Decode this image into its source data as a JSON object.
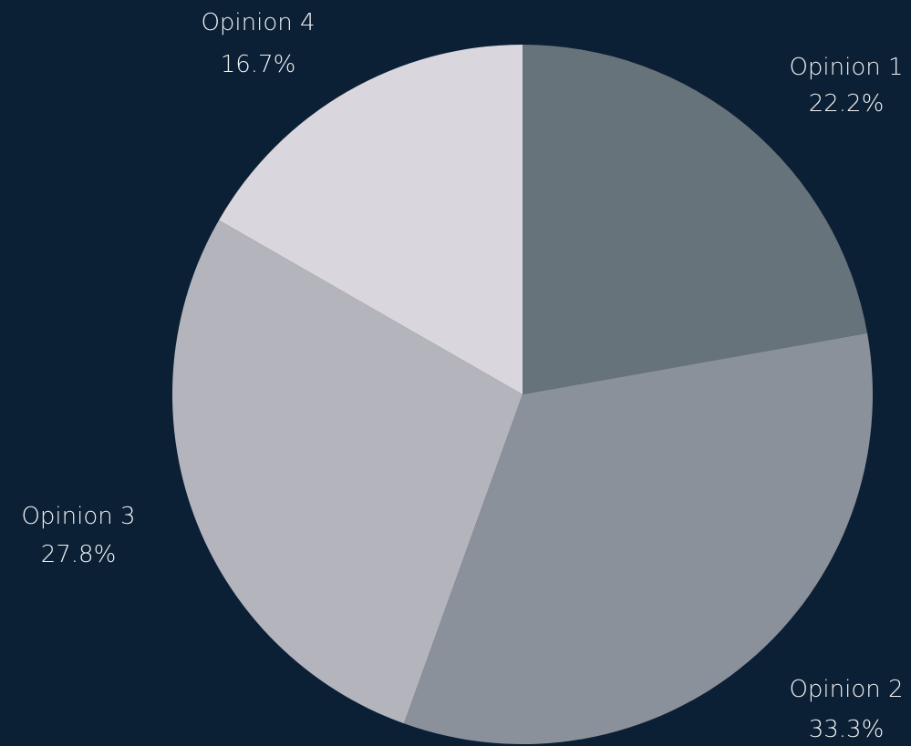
{
  "background": "#0b1f35",
  "chart_data": {
    "type": "pie",
    "title": "",
    "start_angle_deg": 0,
    "direction": "clockwise",
    "slices": [
      {
        "label": "Opinion 1",
        "value": 22.2,
        "value_label": "22.2%",
        "color": "#66737a"
      },
      {
        "label": "Opinion 2",
        "value": 33.3,
        "value_label": "33.3%",
        "color": "#8a919a"
      },
      {
        "label": "Opinion 3",
        "value": 27.8,
        "value_label": "27.8%",
        "color": "#b4b4bd"
      },
      {
        "label": "Opinion 4",
        "value": 16.7,
        "value_label": "16.7%",
        "color": "#dad6de"
      }
    ]
  }
}
